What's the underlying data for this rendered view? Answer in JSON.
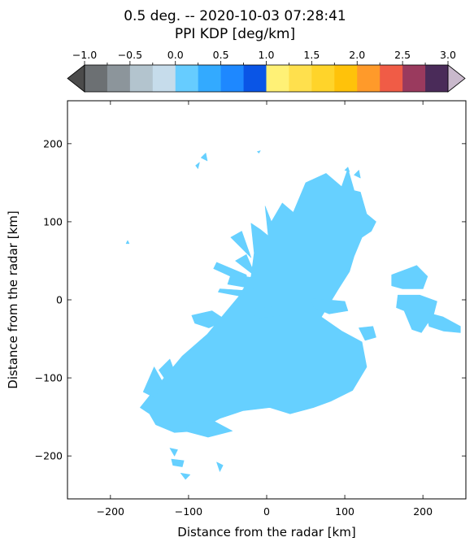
{
  "chart_data": {
    "type": "heatmap",
    "title_line1": "0.5 deg. -- 2020-10-03 07:28:41",
    "title_line2": "PPI KDP [deg/km]",
    "xlabel": "Distance from the radar [km]",
    "ylabel": "Distance from the radar [km]",
    "xlim": [
      -255,
      255
    ],
    "ylim": [
      -255,
      255
    ],
    "x_ticks": [
      -200,
      -100,
      0,
      100,
      200
    ],
    "y_ticks": [
      200,
      100,
      0,
      -100,
      -200
    ],
    "x_tick_labels": [
      "−200",
      "−100",
      "0",
      "100",
      "200"
    ],
    "y_tick_labels": [
      "200",
      "100",
      "0",
      "−100",
      "−200"
    ],
    "grid": false,
    "colorbar": {
      "position": "top",
      "range": [
        -1.0,
        3.0
      ],
      "step": 0.25,
      "extend": "both",
      "tick_values": [
        -1.0,
        -0.5,
        0.0,
        0.5,
        1.0,
        1.5,
        2.0,
        2.5,
        3.0
      ],
      "tick_labels": [
        "−1.0",
        "−0.5",
        "0.0",
        "0.5",
        "1.0",
        "1.5",
        "2.0",
        "2.5",
        "3.0"
      ],
      "under_color": "#4b4b4b",
      "over_color": "#c9b9cc",
      "colors": [
        "#6c7073",
        "#8c959b",
        "#b3c4ce",
        "#c6dceb",
        "#66ccff",
        "#33aaff",
        "#1e88ff",
        "#0a55e6",
        "#fff176",
        "#ffe04d",
        "#ffd42a",
        "#ffc20a",
        "#ff9a2a",
        "#f05c46",
        "#9a3a5e",
        "#4a2b59"
      ]
    },
    "echo_color": "#66d0ff",
    "echo_value_range": "0.0-0.25",
    "echo_polygons_km": [
      [
        [
          -162,
          -138
        ],
        [
          -138,
          -108
        ],
        [
          -108,
          -72
        ],
        [
          -76,
          -44
        ],
        [
          -56,
          -20
        ],
        [
          -36,
          4
        ],
        [
          -20,
          30
        ],
        [
          -16,
          60
        ],
        [
          -20,
          98
        ],
        [
          -8,
          90
        ],
        [
          2,
          82
        ],
        [
          -2,
          120
        ],
        [
          6,
          100
        ],
        [
          20,
          124
        ],
        [
          34,
          112
        ],
        [
          50,
          150
        ],
        [
          76,
          162
        ],
        [
          96,
          145
        ],
        [
          104,
          168
        ],
        [
          112,
          140
        ],
        [
          120,
          138
        ],
        [
          128,
          110
        ],
        [
          140,
          100
        ],
        [
          134,
          88
        ],
        [
          122,
          80
        ],
        [
          112,
          56
        ],
        [
          106,
          36
        ],
        [
          92,
          14
        ],
        [
          70,
          -22
        ],
        [
          96,
          -40
        ],
        [
          122,
          -54
        ],
        [
          128,
          -86
        ],
        [
          110,
          -116
        ],
        [
          82,
          -130
        ],
        [
          60,
          -138
        ],
        [
          30,
          -146
        ],
        [
          4,
          -138
        ],
        [
          -30,
          -142
        ],
        [
          -60,
          -152
        ],
        [
          -90,
          -168
        ],
        [
          -118,
          -170
        ],
        [
          -142,
          -160
        ],
        [
          -150,
          -146
        ]
      ],
      [
        [
          -105,
          -168
        ],
        [
          -75,
          -176
        ],
        [
          -44,
          -168
        ],
        [
          -70,
          -154
        ],
        [
          -98,
          -158
        ]
      ],
      [
        [
          -158,
          -118
        ],
        [
          -144,
          -86
        ],
        [
          -134,
          -104
        ],
        [
          -142,
          -126
        ]
      ],
      [
        [
          -138,
          -90
        ],
        [
          -124,
          -76
        ],
        [
          -118,
          -92
        ],
        [
          -130,
          -102
        ]
      ],
      [
        [
          -96,
          -20
        ],
        [
          -70,
          -14
        ],
        [
          -52,
          -26
        ],
        [
          -74,
          -36
        ],
        [
          -92,
          -30
        ]
      ],
      [
        [
          -50,
          20
        ],
        [
          -16,
          14
        ],
        [
          -14,
          28
        ],
        [
          -46,
          32
        ]
      ],
      [
        [
          -62,
          10
        ],
        [
          -30,
          4
        ],
        [
          -28,
          12
        ],
        [
          -60,
          14
        ]
      ],
      [
        [
          -40,
          50
        ],
        [
          -14,
          30
        ],
        [
          -26,
          58
        ]
      ],
      [
        [
          -46,
          80
        ],
        [
          -20,
          54
        ],
        [
          -32,
          88
        ]
      ],
      [
        [
          -68,
          40
        ],
        [
          -24,
          20
        ],
        [
          -26,
          32
        ],
        [
          -64,
          48
        ]
      ],
      [
        [
          160,
          32
        ],
        [
          192,
          44
        ],
        [
          206,
          30
        ],
        [
          200,
          14
        ],
        [
          174,
          14
        ],
        [
          160,
          18
        ]
      ],
      [
        [
          168,
          6
        ],
        [
          196,
          6
        ],
        [
          218,
          -2
        ],
        [
          214,
          -18
        ],
        [
          198,
          -42
        ],
        [
          186,
          -38
        ],
        [
          176,
          -14
        ],
        [
          166,
          -10
        ]
      ],
      [
        [
          204,
          -16
        ],
        [
          226,
          -22
        ],
        [
          248,
          -34
        ],
        [
          248,
          -42
        ],
        [
          226,
          -40
        ],
        [
          208,
          -34
        ]
      ],
      [
        [
          118,
          -36
        ],
        [
          136,
          -34
        ],
        [
          140,
          -48
        ],
        [
          126,
          -52
        ]
      ],
      [
        [
          56,
          2
        ],
        [
          100,
          -2
        ],
        [
          104,
          -14
        ],
        [
          80,
          -18
        ],
        [
          60,
          -10
        ]
      ],
      [
        [
          -22,
          -12
        ],
        [
          14,
          -8
        ],
        [
          18,
          -20
        ],
        [
          -12,
          -24
        ]
      ],
      [
        [
          -124,
          -190
        ],
        [
          -118,
          -200
        ],
        [
          -114,
          -192
        ]
      ],
      [
        [
          -122,
          -204
        ],
        [
          -106,
          -206
        ],
        [
          -108,
          -214
        ],
        [
          -120,
          -212
        ]
      ],
      [
        [
          -64,
          -208
        ],
        [
          -60,
          -220
        ],
        [
          -56,
          -212
        ]
      ],
      [
        [
          -110,
          -222
        ],
        [
          -104,
          -230
        ],
        [
          -98,
          -224
        ]
      ],
      [
        [
          -84,
          182
        ],
        [
          -78,
          188
        ],
        [
          -76,
          178
        ]
      ],
      [
        [
          -91,
          172
        ],
        [
          -86,
          176
        ],
        [
          -88,
          168
        ]
      ],
      [
        [
          -180,
          72
        ],
        [
          -178,
          76
        ],
        [
          -176,
          72
        ]
      ],
      [
        [
          -12,
          190
        ],
        [
          -8,
          191
        ],
        [
          -10,
          188
        ]
      ],
      [
        [
          112,
          160
        ],
        [
          118,
          166
        ],
        [
          120,
          156
        ]
      ],
      [
        [
          100,
          166
        ],
        [
          104,
          170
        ],
        [
          106,
          164
        ]
      ]
    ]
  }
}
